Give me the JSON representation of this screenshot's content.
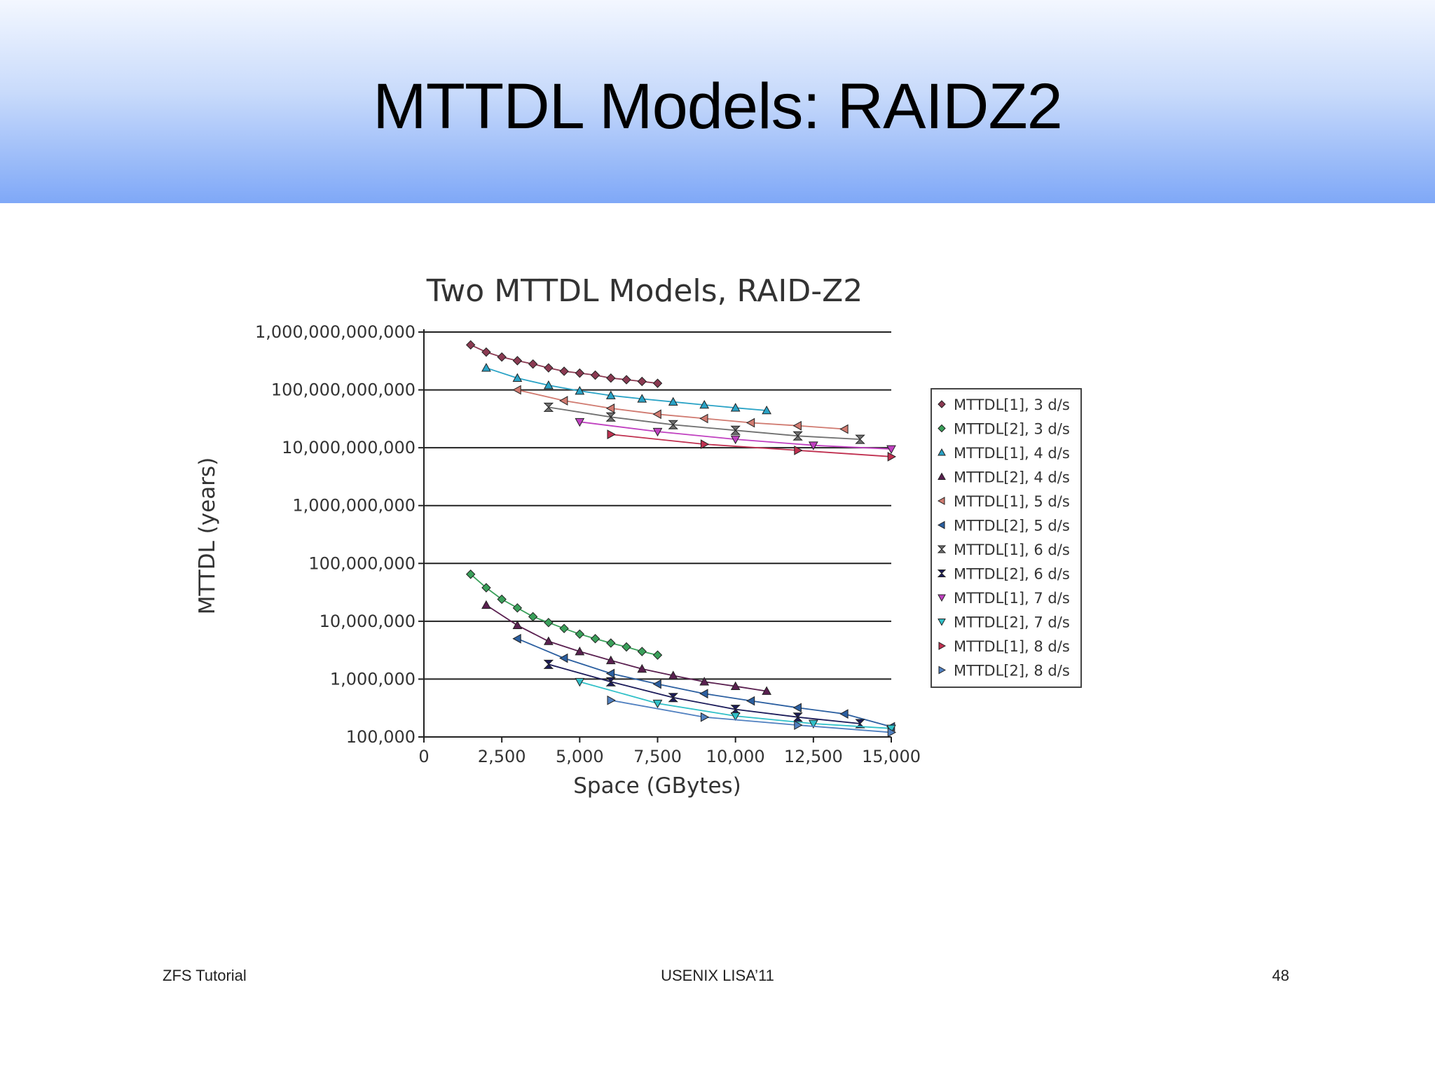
{
  "slide": {
    "title": "MTTDL Models: RAIDZ2",
    "footer_left": "ZFS Tutorial",
    "footer_center": "USENIX LISA’11",
    "footer_right": "48"
  },
  "chart_data": {
    "type": "scatter",
    "title": "Two MTTDL Models, RAID-Z2",
    "xlabel": "Space (GBytes)",
    "ylabel": "MTTDL (years)",
    "xlim": [
      0,
      15000
    ],
    "ylim": [
      100000,
      1000000000000
    ],
    "y_scale": "log",
    "grid": "horizontal",
    "legend_position": "right",
    "x_ticks": [
      0,
      2500,
      5000,
      7500,
      10000,
      12500,
      15000
    ],
    "x_tick_labels": [
      "0",
      "2,500",
      "5,000",
      "7,500",
      "10,000",
      "12,500",
      "15,000"
    ],
    "y_ticks": [
      100000,
      1000000,
      10000000,
      100000000,
      1000000000,
      10000000000,
      100000000000,
      1000000000000
    ],
    "y_tick_labels": [
      "100,000",
      "1,000,000",
      "10,000,000",
      "100,000,000",
      "1,000,000,000",
      "10,000,000,000",
      "100,000,000,000",
      "1,000,000,000,000"
    ],
    "series": [
      {
        "name": "MTTDL[1], 3 d/s",
        "marker": "diamond",
        "color": "#8b3a52",
        "x": [
          1500,
          2000,
          2500,
          3000,
          3500,
          4000,
          4500,
          5000,
          5500,
          6000,
          6500,
          7000,
          7500
        ],
        "y": [
          600000000000,
          450000000000,
          370000000000,
          320000000000,
          280000000000,
          240000000000,
          210000000000,
          195000000000,
          180000000000,
          160000000000,
          150000000000,
          140000000000,
          130000000000
        ]
      },
      {
        "name": "MTTDL[2], 3 d/s",
        "marker": "diamond",
        "color": "#3aa05a",
        "x": [
          1500,
          2000,
          2500,
          3000,
          3500,
          4000,
          4500,
          5000,
          5500,
          6000,
          6500,
          7000,
          7500
        ],
        "y": [
          65000000,
          38000000,
          24000000,
          17000000,
          12000000,
          9500000,
          7500000,
          6000000,
          5000000,
          4200000,
          3600000,
          3000000,
          2600000
        ]
      },
      {
        "name": "MTTDL[1], 4 d/s",
        "marker": "triangle-up",
        "color": "#2aa3c6",
        "x": [
          2000,
          3000,
          4000,
          5000,
          6000,
          7000,
          8000,
          9000,
          10000,
          11000
        ],
        "y": [
          240000000000,
          160000000000,
          120000000000,
          96000000000,
          80000000000,
          70000000000,
          62000000000,
          55000000000,
          49000000000,
          44000000000
        ]
      },
      {
        "name": "MTTDL[2], 4 d/s",
        "marker": "triangle-up",
        "color": "#5a2050",
        "x": [
          2000,
          3000,
          4000,
          5000,
          6000,
          7000,
          8000,
          9000,
          10000,
          11000
        ],
        "y": [
          19000000,
          8500000,
          4500000,
          3000000,
          2100000,
          1500000,
          1150000,
          900000,
          750000,
          620000
        ]
      },
      {
        "name": "MTTDL[1], 5 d/s",
        "marker": "triangle-left",
        "color": "#d07a70",
        "x": [
          3000,
          4500,
          6000,
          7500,
          9000,
          10500,
          12000,
          13500
        ],
        "y": [
          100000000000,
          65000000000,
          48000000000,
          38000000000,
          32000000000,
          27000000000,
          24000000000,
          21000000000
        ]
      },
      {
        "name": "MTTDL[2], 5 d/s",
        "marker": "triangle-left",
        "color": "#2b5fa0",
        "x": [
          3000,
          4500,
          6000,
          7500,
          9000,
          10500,
          12000,
          13500,
          15000
        ],
        "y": [
          5000000,
          2300000,
          1250000,
          820000,
          560000,
          420000,
          320000,
          250000,
          150000
        ]
      },
      {
        "name": "MTTDL[1], 6 d/s",
        "marker": "hourglass",
        "color": "#707070",
        "x": [
          4000,
          6000,
          8000,
          10000,
          12000,
          14000
        ],
        "y": [
          50000000000,
          34000000000,
          25000000000,
          20000000000,
          16000000000,
          14000000000
        ]
      },
      {
        "name": "MTTDL[2], 6 d/s",
        "marker": "hourglass",
        "color": "#1c1c5a",
        "x": [
          4000,
          6000,
          8000,
          10000,
          12000,
          14000
        ],
        "y": [
          1800000,
          900000,
          480000,
          300000,
          220000,
          170000
        ]
      },
      {
        "name": "MTTDL[1], 7 d/s",
        "marker": "triangle-down",
        "color": "#c040c0",
        "x": [
          5000,
          7500,
          10000,
          12500,
          15000
        ],
        "y": [
          28000000000,
          19000000000,
          14000000000,
          11000000000,
          9500000000
        ]
      },
      {
        "name": "MTTDL[2], 7 d/s",
        "marker": "triangle-down",
        "color": "#30c0c8",
        "x": [
          5000,
          7500,
          10000,
          12500,
          15000
        ],
        "y": [
          900000,
          380000,
          230000,
          170000,
          140000
        ]
      },
      {
        "name": "MTTDL[1], 8 d/s",
        "marker": "triangle-right",
        "color": "#c03050",
        "x": [
          6000,
          9000,
          12000,
          15000
        ],
        "y": [
          17000000000,
          11500000000,
          9000000000,
          7000000000
        ]
      },
      {
        "name": "MTTDL[2], 8 d/s",
        "marker": "triangle-right",
        "color": "#5080c0",
        "x": [
          6000,
          9000,
          12000,
          15000
        ],
        "y": [
          430000,
          220000,
          160000,
          120000
        ]
      }
    ]
  }
}
